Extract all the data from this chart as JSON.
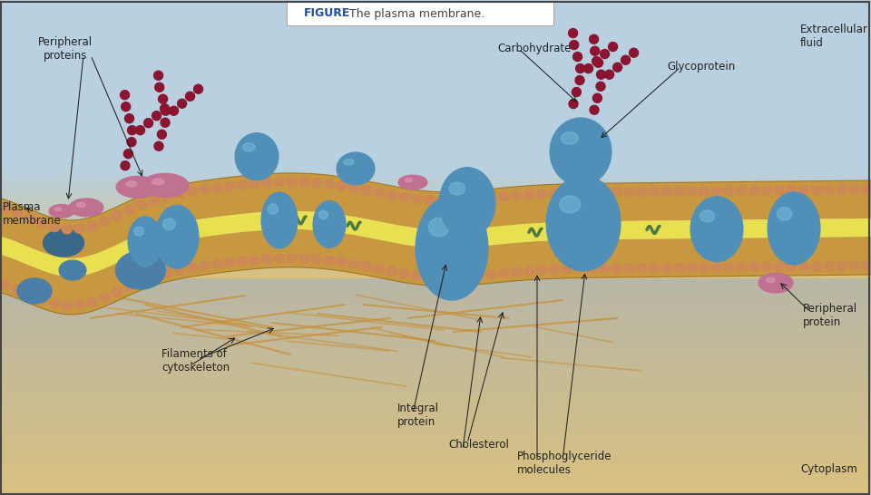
{
  "title": "The plasma membrane.",
  "title_label": "FIGURE",
  "bg_extracellular": "#b8d0e0",
  "bg_cytoplasm": "#d8c080",
  "border_color": "#444444",
  "labels": {
    "extracellular_fluid": "Extracellular\nfluid",
    "cytoplasm": "Cytoplasm",
    "peripheral_proteins": "Peripheral\nproteins",
    "plasma_membrane": "Plasma\nmembrane",
    "carbohydrate": "Carbohydrate",
    "glycoprotein": "Glycoprotein",
    "filaments": "Filaments of\ncytoskeleton",
    "integral_protein": "Integral\nprotein",
    "cholesterol": "Cholesterol",
    "phosphoglyceride": "Phosphoglyceride\nmolecules",
    "peripheral_protein_right": "Peripheral\nprotein"
  },
  "membrane_outer_color": "#c89840",
  "membrane_inner_color": "#e8e050",
  "phospholipid_head_color": "#cc8855",
  "protein_blue_color": "#5090b8",
  "protein_blue_dark": "#3a7090",
  "protein_blue_light": "#80c0e0",
  "protein_pink_color": "#c07090",
  "carb_chain_color": "#8b1530",
  "cholesterol_color": "#507840",
  "figure_box_color": "#ffffff",
  "filament_color": "#c8903a"
}
